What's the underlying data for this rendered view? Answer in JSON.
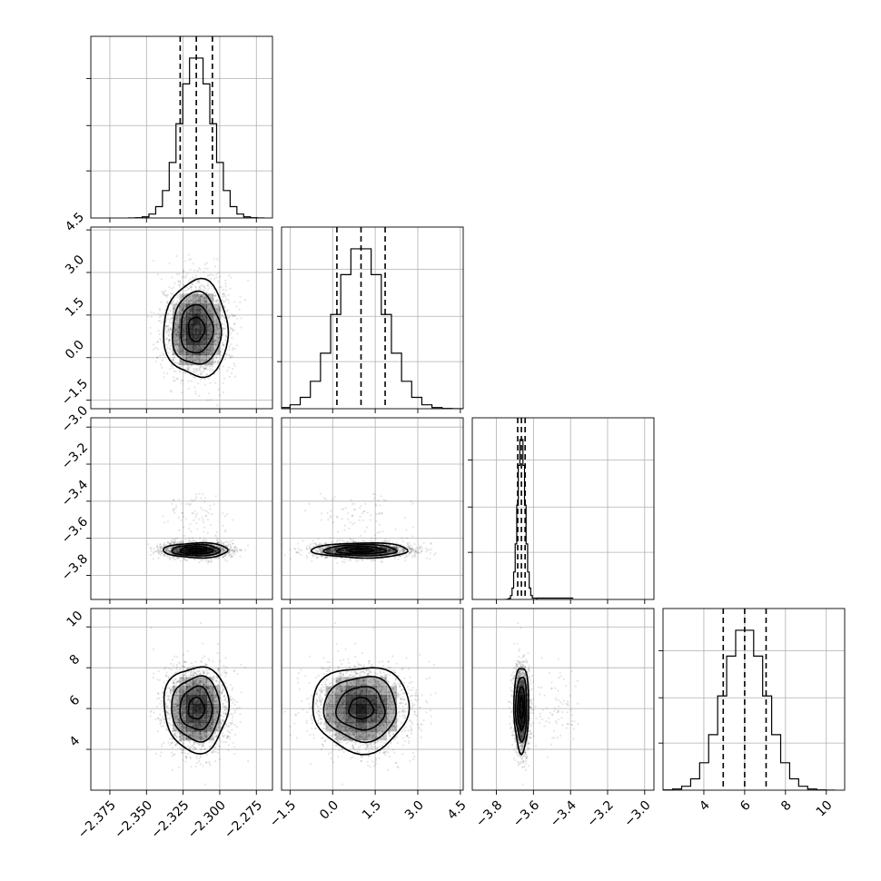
{
  "chart_data": {
    "type": "corner",
    "parameters": [
      {
        "name": "",
        "mean": -2.316,
        "std": 0.011,
        "q16": -2.327,
        "q50": -2.316,
        "q84": -2.305,
        "range": [
          -2.388,
          -2.264
        ],
        "ticks": [
          -2.375,
          -2.35,
          -2.325,
          -2.3,
          -2.275
        ],
        "tick_labels": [
          "−2.375",
          "−2.350",
          "−2.325",
          "−2.300",
          "−2.275"
        ]
      },
      {
        "name": "",
        "mean": 1.0,
        "std": 0.85,
        "q16": 0.15,
        "q50": 1.0,
        "q84": 1.85,
        "range": [
          -1.8,
          4.6
        ],
        "ticks": [
          -1.5,
          0.0,
          1.5,
          3.0,
          4.5
        ],
        "tick_labels": [
          "−1.5",
          "0.0",
          "1.5",
          "3.0",
          "4.5"
        ]
      },
      {
        "name": "",
        "mean": -3.665,
        "std": 0.02,
        "q16": -3.685,
        "q50": -3.665,
        "q84": -3.645,
        "range": [
          -3.93,
          -2.95
        ],
        "ticks": [
          -3.8,
          -3.6,
          -3.4,
          -3.2,
          -3.0
        ],
        "tick_labels": [
          "−3.8",
          "−3.6",
          "−3.4",
          "−3.2",
          "−3.0"
        ]
      },
      {
        "name": "",
        "mean": 6.0,
        "std": 1.05,
        "q16": 4.95,
        "q50": 6.0,
        "q84": 7.05,
        "range": [
          2.0,
          10.9
        ],
        "ticks": [
          4,
          6,
          8,
          10
        ],
        "tick_labels": [
          "4",
          "6",
          "8",
          "10"
        ]
      }
    ],
    "quantiles": [
      0.16,
      0.5,
      0.84
    ],
    "grid": true,
    "samples_shown": "scatter + 2D histogram + contours (lower triangle), 1D histograms (diagonal)"
  },
  "colors": {
    "ink": "#000000",
    "grid": "#b0b0b0",
    "background": "#ffffff"
  }
}
